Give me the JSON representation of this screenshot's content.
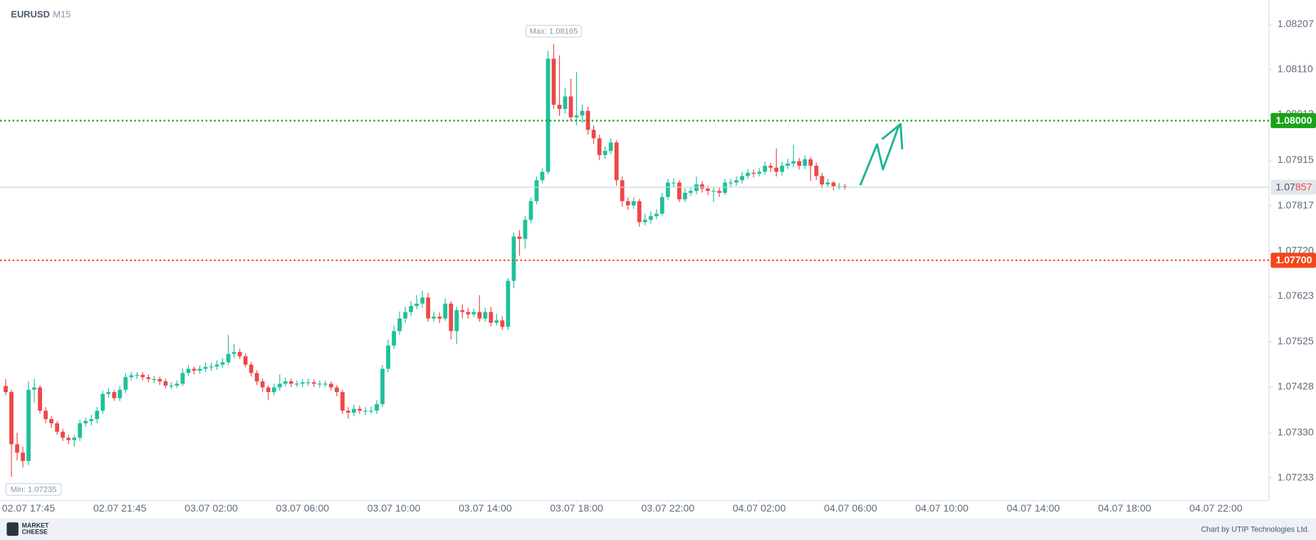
{
  "chart_data": {
    "type": "candlestick",
    "symbol": "EURUSD",
    "timeframe": "M15",
    "up_color": "#1fc09b",
    "down_color": "#ef4747",
    "candles": [
      [
        1.0743,
        1.07445,
        1.0741,
        1.07417
      ],
      [
        1.07417,
        1.07422,
        1.07235,
        1.07305
      ],
      [
        1.07305,
        1.0733,
        1.0727,
        1.07287
      ],
      [
        1.07287,
        1.073,
        1.07255,
        1.07269
      ],
      [
        1.07269,
        1.0744,
        1.0726,
        1.07422
      ],
      [
        1.07422,
        1.07445,
        1.07395,
        1.07427
      ],
      [
        1.07427,
        1.07432,
        1.0737,
        1.07377
      ],
      [
        1.07377,
        1.07385,
        1.0735,
        1.07359
      ],
      [
        1.07359,
        1.07365,
        1.0734,
        1.0735
      ],
      [
        1.0735,
        1.07355,
        1.07325,
        1.07332
      ],
      [
        1.07332,
        1.07338,
        1.07312,
        1.07319
      ],
      [
        1.07319,
        1.07325,
        1.07305,
        1.07314
      ],
      [
        1.07314,
        1.07325,
        1.073,
        1.07319
      ],
      [
        1.07319,
        1.07358,
        1.07312,
        1.0735
      ],
      [
        1.0735,
        1.07362,
        1.07342,
        1.07355
      ],
      [
        1.07355,
        1.07368,
        1.07345,
        1.07359
      ],
      [
        1.07359,
        1.07385,
        1.0735,
        1.07377
      ],
      [
        1.07377,
        1.0742,
        1.0737,
        1.07413
      ],
      [
        1.07413,
        1.07425,
        1.07405,
        1.07417
      ],
      [
        1.07417,
        1.07422,
        1.07398,
        1.07404
      ],
      [
        1.07404,
        1.0743,
        1.07398,
        1.07422
      ],
      [
        1.07422,
        1.07458,
        1.07415,
        1.07449
      ],
      [
        1.07449,
        1.0746,
        1.07442,
        1.07453
      ],
      [
        1.07453,
        1.0746,
        1.07445,
        1.07454
      ],
      [
        1.07454,
        1.0746,
        1.07442,
        1.07449
      ],
      [
        1.07449,
        1.07455,
        1.07438,
        1.07445
      ],
      [
        1.07445,
        1.07452,
        1.07436,
        1.07445
      ],
      [
        1.07445,
        1.0745,
        1.07432,
        1.0744
      ],
      [
        1.0744,
        1.07446,
        1.07425,
        1.07431
      ],
      [
        1.07431,
        1.07438,
        1.07424,
        1.07431
      ],
      [
        1.07431,
        1.07442,
        1.07426,
        1.07435
      ],
      [
        1.07435,
        1.07468,
        1.0743,
        1.07458
      ],
      [
        1.07458,
        1.07475,
        1.07452,
        1.07467
      ],
      [
        1.07467,
        1.07472,
        1.07455,
        1.07463
      ],
      [
        1.07463,
        1.07474,
        1.07456,
        1.07467
      ],
      [
        1.07467,
        1.0748,
        1.0746,
        1.07471
      ],
      [
        1.07471,
        1.0748,
        1.07463,
        1.07472
      ],
      [
        1.07472,
        1.07485,
        1.07465,
        1.07476
      ],
      [
        1.07476,
        1.0749,
        1.0747,
        1.07481
      ],
      [
        1.07481,
        1.0754,
        1.07475,
        1.07499
      ],
      [
        1.07499,
        1.0752,
        1.0749,
        1.07503
      ],
      [
        1.07503,
        1.0751,
        1.07488,
        1.07494
      ],
      [
        1.07494,
        1.075,
        1.0747,
        1.07476
      ],
      [
        1.07476,
        1.07482,
        1.0745,
        1.07458
      ],
      [
        1.07458,
        1.07464,
        1.07432,
        1.0744
      ],
      [
        1.0744,
        1.07446,
        1.07418,
        1.07427
      ],
      [
        1.07427,
        1.07432,
        1.074,
        1.07417
      ],
      [
        1.07417,
        1.07435,
        1.0741,
        1.07427
      ],
      [
        1.07427,
        1.07455,
        1.0742,
        1.07435
      ],
      [
        1.07435,
        1.07448,
        1.07428,
        1.0744
      ],
      [
        1.0744,
        1.07446,
        1.07428,
        1.07435
      ],
      [
        1.07435,
        1.07442,
        1.07428,
        1.07435
      ],
      [
        1.07435,
        1.07445,
        1.07428,
        1.07438
      ],
      [
        1.07438,
        1.07446,
        1.0743,
        1.07438
      ],
      [
        1.07438,
        1.07444,
        1.07428,
        1.07435
      ],
      [
        1.07435,
        1.07442,
        1.07426,
        1.07435
      ],
      [
        1.07435,
        1.07442,
        1.07428,
        1.07435
      ],
      [
        1.07435,
        1.0744,
        1.0742,
        1.07427
      ],
      [
        1.07427,
        1.07432,
        1.07408,
        1.07417
      ],
      [
        1.07417,
        1.07422,
        1.0737,
        1.07377
      ],
      [
        1.07377,
        1.07385,
        1.0736,
        1.07373
      ],
      [
        1.07373,
        1.0739,
        1.07365,
        1.07381
      ],
      [
        1.07381,
        1.07388,
        1.0737,
        1.07377
      ],
      [
        1.07377,
        1.07385,
        1.07368,
        1.07377
      ],
      [
        1.07377,
        1.07386,
        1.0737,
        1.07377
      ],
      [
        1.07377,
        1.074,
        1.0737,
        1.07391
      ],
      [
        1.07391,
        1.07475,
        1.07385,
        1.07467
      ],
      [
        1.07467,
        1.0753,
        1.0746,
        1.07517
      ],
      [
        1.07517,
        1.0756,
        1.0751,
        1.07548
      ],
      [
        1.07548,
        1.0759,
        1.0754,
        1.07575
      ],
      [
        1.07575,
        1.076,
        1.07565,
        1.07589
      ],
      [
        1.07589,
        1.07612,
        1.0758,
        1.07602
      ],
      [
        1.07602,
        1.07625,
        1.07595,
        1.07607
      ],
      [
        1.07607,
        1.07635,
        1.07598,
        1.0762
      ],
      [
        1.0762,
        1.0763,
        1.07568,
        1.07575
      ],
      [
        1.07575,
        1.0759,
        1.07568,
        1.07579
      ],
      [
        1.07579,
        1.07588,
        1.07565,
        1.07575
      ],
      [
        1.07575,
        1.07618,
        1.0757,
        1.07607
      ],
      [
        1.07607,
        1.07612,
        1.0753,
        1.07548
      ],
      [
        1.07548,
        1.076,
        1.0752,
        1.07593
      ],
      [
        1.07593,
        1.07605,
        1.07575,
        1.07589
      ],
      [
        1.07589,
        1.07598,
        1.07575,
        1.07584
      ],
      [
        1.07584,
        1.07596,
        1.07578,
        1.07589
      ],
      [
        1.07589,
        1.07625,
        1.07568,
        1.07575
      ],
      [
        1.07575,
        1.07598,
        1.07568,
        1.07589
      ],
      [
        1.07589,
        1.076,
        1.07558,
        1.07566
      ],
      [
        1.07566,
        1.07585,
        1.0756,
        1.07571
      ],
      [
        1.07571,
        1.0758,
        1.0755,
        1.07557
      ],
      [
        1.07557,
        1.07662,
        1.0755,
        1.07656
      ],
      [
        1.07656,
        1.0776,
        1.0764,
        1.07751
      ],
      [
        1.07751,
        1.07765,
        1.0771,
        1.07746
      ],
      [
        1.07746,
        1.07795,
        1.07725,
        1.07787
      ],
      [
        1.07787,
        1.07835,
        1.0778,
        1.07827
      ],
      [
        1.07827,
        1.0788,
        1.0782,
        1.07872
      ],
      [
        1.07872,
        1.07898,
        1.07865,
        1.0789
      ],
      [
        1.0789,
        1.0815,
        1.07885,
        1.08133
      ],
      [
        1.08133,
        1.08165,
        1.08025,
        1.08034
      ],
      [
        1.08034,
        1.0814,
        1.0801,
        1.08025
      ],
      [
        1.08025,
        1.0807,
        1.08015,
        1.08052
      ],
      [
        1.08052,
        1.0809,
        1.08,
        1.08007
      ],
      [
        1.08007,
        1.08105,
        1.0799,
        1.08011
      ],
      [
        1.08011,
        1.08035,
        1.07995,
        1.08021
      ],
      [
        1.08021,
        1.0803,
        1.0797,
        1.0798
      ],
      [
        1.0798,
        1.0799,
        1.0795,
        1.07962
      ],
      [
        1.07962,
        1.0797,
        1.07915,
        1.07926
      ],
      [
        1.07926,
        1.07945,
        1.07918,
        1.07935
      ],
      [
        1.07935,
        1.07962,
        1.07928,
        1.07953
      ],
      [
        1.07953,
        1.07958,
        1.0786,
        1.07872
      ],
      [
        1.07872,
        1.0788,
        1.07815,
        1.07827
      ],
      [
        1.07827,
        1.07835,
        1.07808,
        1.07818
      ],
      [
        1.07818,
        1.07835,
        1.0781,
        1.07827
      ],
      [
        1.07827,
        1.07832,
        1.07772,
        1.07782
      ],
      [
        1.07782,
        1.078,
        1.07775,
        1.07787
      ],
      [
        1.07787,
        1.07805,
        1.0778,
        1.07795
      ],
      [
        1.07795,
        1.0781,
        1.07788,
        1.078
      ],
      [
        1.078,
        1.07845,
        1.07795,
        1.07836
      ],
      [
        1.07836,
        1.07875,
        1.0783,
        1.07867
      ],
      [
        1.07867,
        1.07876,
        1.07858,
        1.07867
      ],
      [
        1.07867,
        1.07872,
        1.07825,
        1.07831
      ],
      [
        1.07831,
        1.07855,
        1.07825,
        1.07845
      ],
      [
        1.07845,
        1.07858,
        1.07838,
        1.07849
      ],
      [
        1.07849,
        1.0788,
        1.07842,
        1.07863
      ],
      [
        1.07863,
        1.0787,
        1.07845,
        1.07854
      ],
      [
        1.07854,
        1.0786,
        1.0784,
        1.07849
      ],
      [
        1.07849,
        1.07856,
        1.07825,
        1.07849
      ],
      [
        1.07849,
        1.07856,
        1.07836,
        1.07845
      ],
      [
        1.07845,
        1.07875,
        1.0784,
        1.07867
      ],
      [
        1.07867,
        1.07875,
        1.07858,
        1.07867
      ],
      [
        1.07867,
        1.0788,
        1.0786,
        1.07872
      ],
      [
        1.07872,
        1.0789,
        1.07865,
        1.07881
      ],
      [
        1.07881,
        1.07896,
        1.07875,
        1.07888
      ],
      [
        1.07888,
        1.07895,
        1.07878,
        1.07886
      ],
      [
        1.07886,
        1.07898,
        1.0788,
        1.0789
      ],
      [
        1.0789,
        1.07912,
        1.07884,
        1.07903
      ],
      [
        1.07903,
        1.0791,
        1.0789,
        1.07899
      ],
      [
        1.07899,
        1.0794,
        1.0788,
        1.0789
      ],
      [
        1.0789,
        1.07912,
        1.07882,
        1.07903
      ],
      [
        1.07903,
        1.07918,
        1.07896,
        1.07908
      ],
      [
        1.07908,
        1.07948,
        1.079,
        1.07913
      ],
      [
        1.07913,
        1.0792,
        1.07895,
        1.07903
      ],
      [
        1.07903,
        1.07925,
        1.07896,
        1.07917
      ],
      [
        1.07917,
        1.07922,
        1.0787,
        1.07903
      ],
      [
        1.07903,
        1.0791,
        1.07872,
        1.07881
      ],
      [
        1.07881,
        1.07888,
        1.07855,
        1.07863
      ],
      [
        1.07863,
        1.07875,
        1.07856,
        1.07867
      ],
      [
        1.07867,
        1.0787,
        1.0785,
        1.07859
      ],
      [
        1.07859,
        1.07866,
        1.07852,
        1.07859
      ],
      [
        1.07859,
        1.07864,
        1.07852,
        1.07857
      ]
    ],
    "xlim": [
      -1,
      221.3
    ],
    "xticks": [
      {
        "value": 4,
        "label": "02.07 17:45"
      },
      {
        "value": 20,
        "label": "02.07 21:45"
      },
      {
        "value": 36,
        "label": "03.07 02:00"
      },
      {
        "value": 52,
        "label": "03.07 06:00"
      },
      {
        "value": 68,
        "label": "03.07 10:00"
      },
      {
        "value": 84,
        "label": "03.07 14:00"
      },
      {
        "value": 100,
        "label": "03.07 18:00"
      },
      {
        "value": 116,
        "label": "03.07 22:00"
      },
      {
        "value": 132,
        "label": "04.07 02:00"
      },
      {
        "value": 148,
        "label": "04.07 06:00"
      },
      {
        "value": 164,
        "label": "04.07 10:00"
      },
      {
        "value": 180,
        "label": "04.07 14:00"
      },
      {
        "value": 196,
        "label": "04.07 18:00"
      },
      {
        "value": 212,
        "label": "04.07 22:00"
      }
    ],
    "ylim": [
      1.07184,
      1.08259
    ],
    "yticks": [
      1.08207,
      {
        "value": 1.0811,
        "label": "1.08110"
      },
      1.08013,
      1.07915,
      1.07817,
      {
        "value": 1.0772,
        "label": "1.07720"
      },
      1.07623,
      1.07525,
      1.07428,
      {
        "value": 1.0733,
        "label": "1.07330"
      },
      1.07233
    ],
    "grid": false,
    "levels": [
      {
        "value": 1.08,
        "label": "1.08000",
        "color": "#19a319"
      },
      {
        "value": 1.077,
        "label": "1.07700",
        "color": "#f2471c"
      }
    ],
    "last_price": 1.07857,
    "max_label": "Max: 1.08165",
    "min_label": "Min: 1.07235"
  },
  "footer": {
    "logo": [
      "MARKET",
      "CHEESE"
    ],
    "credit": "Chart by UTIP Technologies Ltd."
  }
}
